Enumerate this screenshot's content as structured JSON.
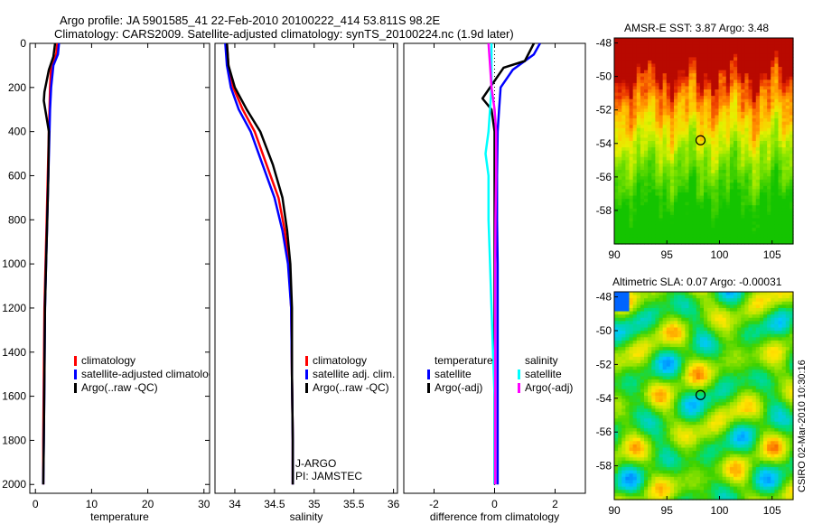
{
  "header": {
    "line1": "Argo profile: JA 5901585_41 22-Feb-2010 20100222_414 53.811S 98.2E",
    "line2": "Climatology: CARS2009. Satellite-adjusted climatology: synTS_20100224.nc (1.9d later)"
  },
  "side_label": "CSIRO 02-Mar-2010 10:30:16",
  "chart_data": [
    {
      "id": "temp",
      "type": "line",
      "xlabel": "temperature",
      "ylabel": "",
      "xlim": [
        -1,
        31
      ],
      "ylim": [
        2040,
        0
      ],
      "xticks": [
        0,
        10,
        20,
        30
      ],
      "yticks": [
        0,
        200,
        400,
        600,
        800,
        1000,
        1200,
        1400,
        1600,
        1800,
        2000
      ],
      "legend": [
        "climatology",
        "satellite-adjusted climatology",
        "Argo(..raw -QC)"
      ],
      "series": [
        {
          "name": "climatology",
          "color": "#ff0000",
          "x": [
            3.9,
            3.7,
            2.8,
            2.6,
            2.5,
            2.4,
            2.2,
            2.0,
            1.8,
            1.6,
            1.5,
            1.4,
            1.4
          ],
          "y": [
            0,
            50,
            100,
            200,
            300,
            400,
            600,
            800,
            1000,
            1200,
            1500,
            1800,
            2000
          ]
        },
        {
          "name": "satellite-adjusted climatology",
          "color": "#0000ff",
          "x": [
            4.2,
            4.0,
            3.2,
            2.8,
            2.6,
            2.5,
            2.3,
            2.1,
            1.9,
            1.7,
            1.6,
            1.5,
            1.4
          ],
          "y": [
            0,
            50,
            100,
            200,
            300,
            400,
            600,
            800,
            1000,
            1200,
            1500,
            1800,
            2000
          ]
        },
        {
          "name": "Argo(..raw -QC)",
          "color": "#000000",
          "x": [
            3.5,
            3.2,
            2.4,
            1.6,
            1.5,
            2.4,
            2.3,
            2.1,
            1.9,
            1.7,
            1.6,
            1.5,
            1.4
          ],
          "y": [
            0,
            60,
            120,
            220,
            260,
            400,
            600,
            800,
            1000,
            1200,
            1500,
            1800,
            2000
          ]
        }
      ]
    },
    {
      "id": "sal",
      "type": "line",
      "xlabel": "salinity",
      "xlim": [
        33.75,
        36.05
      ],
      "ylim": [
        2040,
        0
      ],
      "xticks": [
        34,
        34.5,
        35,
        35.5,
        36
      ],
      "legend": [
        "climatology",
        "satellite adj. clim.",
        "Argo(..raw -QC)"
      ],
      "annotations": [
        "J-ARGO",
        "PI: JAMSTEC"
      ],
      "series": [
        {
          "name": "climatology",
          "color": "#ff0000",
          "x": [
            33.9,
            33.92,
            33.98,
            34.1,
            34.25,
            34.4,
            34.55,
            34.63,
            34.68,
            34.71,
            34.72,
            34.73,
            34.73
          ],
          "y": [
            0,
            100,
            200,
            300,
            400,
            550,
            700,
            850,
            1000,
            1200,
            1500,
            1800,
            2000
          ]
        },
        {
          "name": "satellite adj. clim.",
          "color": "#0000ff",
          "x": [
            33.88,
            33.9,
            33.95,
            34.05,
            34.2,
            34.35,
            34.5,
            34.6,
            34.67,
            34.71,
            34.72,
            34.73,
            34.73
          ],
          "y": [
            0,
            100,
            200,
            300,
            400,
            550,
            700,
            850,
            1000,
            1200,
            1500,
            1800,
            2000
          ]
        },
        {
          "name": "Argo(..raw -QC)",
          "color": "#000000",
          "x": [
            33.9,
            33.92,
            34.0,
            34.15,
            34.32,
            34.48,
            34.6,
            34.66,
            34.7,
            34.72,
            34.72,
            34.73,
            34.73
          ],
          "y": [
            0,
            100,
            200,
            300,
            400,
            550,
            700,
            850,
            1000,
            1200,
            1500,
            1800,
            2000
          ]
        }
      ]
    },
    {
      "id": "diff",
      "type": "line",
      "xlabel": "difference from climatology",
      "xlim": [
        -3,
        3
      ],
      "ylim": [
        2040,
        0
      ],
      "xticks": [
        -2,
        0,
        2
      ],
      "legend_groups": [
        {
          "title": "temperature",
          "items": [
            "satellite",
            "Argo(-adj)"
          ]
        },
        {
          "title": "salinity",
          "items": [
            "satellite",
            "Argo(-adj)"
          ]
        }
      ],
      "series": [
        {
          "name": "temperature satellite",
          "color": "#0000ff",
          "x": [
            1.5,
            1.3,
            0.6,
            0.2,
            0.15,
            0.1,
            0.08,
            0.08,
            0.1,
            0.1,
            0.1,
            0.1,
            0.1
          ],
          "y": [
            0,
            50,
            120,
            200,
            300,
            400,
            600,
            800,
            1000,
            1200,
            1500,
            1800,
            2000
          ]
        },
        {
          "name": "temperature Argo(-adj)",
          "color": "#000000",
          "x": [
            1.3,
            1.0,
            0.3,
            -0.4,
            -0.1,
            0.0,
            0.0,
            0.0,
            0.0,
            0.0,
            0.0,
            0.0,
            0.0
          ],
          "y": [
            0,
            80,
            110,
            250,
            300,
            400,
            600,
            800,
            1000,
            1200,
            1500,
            1800,
            2000
          ]
        },
        {
          "name": "salinity satellite",
          "color": "#00ffff",
          "x": [
            -0.1,
            -0.1,
            -0.1,
            -0.2,
            -0.3,
            -0.2,
            -0.2,
            -0.15,
            -0.1,
            -0.05,
            0.0,
            0.0,
            0.0
          ],
          "y": [
            0,
            100,
            200,
            400,
            500,
            600,
            800,
            1000,
            1200,
            1400,
            1600,
            1800,
            2000
          ]
        },
        {
          "name": "salinity Argo(-adj)",
          "color": "#ff00ff",
          "x": [
            -0.2,
            -0.15,
            -0.1,
            0.0,
            0.05,
            0.05,
            0.03,
            0.02,
            0.02,
            0.02,
            0.02,
            0.02,
            0.02
          ],
          "y": [
            0,
            100,
            200,
            300,
            400,
            600,
            800,
            1000,
            1200,
            1400,
            1600,
            1800,
            2000
          ]
        }
      ]
    },
    {
      "id": "sst",
      "type": "heatmap",
      "title": "AMSR-E SST: 3.87 Argo: 3.48",
      "xlim": [
        90,
        107
      ],
      "ylim": [
        -60,
        -47.7
      ],
      "xticks": [
        90,
        95,
        100,
        105
      ],
      "yticks": [
        -48,
        -50,
        -52,
        -54,
        -56,
        -58
      ],
      "marker": {
        "lon": 98.2,
        "lat": -53.811
      }
    },
    {
      "id": "sla",
      "type": "heatmap",
      "title": "Altimetric SLA: 0.07 Argo: -0.00031",
      "xlim": [
        90,
        107
      ],
      "ylim": [
        -60,
        -47.7
      ],
      "xticks": [
        90,
        95,
        100,
        105
      ],
      "yticks": [
        -48,
        -50,
        -52,
        -54,
        -56,
        -58
      ],
      "marker": {
        "lon": 98.2,
        "lat": -53.811
      }
    }
  ]
}
